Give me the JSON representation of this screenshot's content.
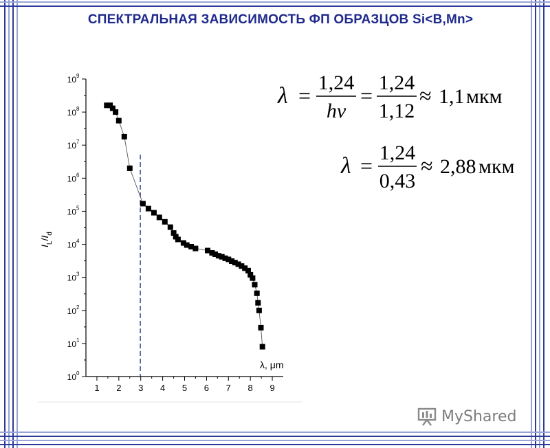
{
  "title": "СПЕКТРАЛЬНАЯ ЗАВИСИМОСТЬ ФП ОБРАЗЦОВ Si<B,Mn>",
  "formula1": {
    "lhs": "λ",
    "eq": "=",
    "frac1_num": "1,24",
    "frac1_den": "hν",
    "frac2_num": "1,24",
    "frac2_den": "1,12",
    "approx": "≈",
    "value": "1,1",
    "unit": "мкм"
  },
  "formula2": {
    "lhs": "λ",
    "eq": "=",
    "frac_num": "1,24",
    "frac_den": "0,43",
    "approx": "≈",
    "value": "2,88",
    "unit": "мкм"
  },
  "logo": {
    "text": "MyShared",
    "icon": "presentation-board-icon"
  },
  "colors": {
    "title": "#1f2a8c",
    "frame": "#2d3a9a",
    "dashed": "#1f2a8c"
  },
  "chart_data": {
    "type": "scatter",
    "xlabel": "λ, μm",
    "ylabel": "IL/Id",
    "ylabel_parts": {
      "I1": "I",
      "sub1": "L",
      "slash": "/",
      "I2": "I",
      "sub2": "d"
    },
    "xlim": [
      0.5,
      9.5
    ],
    "ylim_log10": [
      0,
      9
    ],
    "y_scale": "log",
    "x_ticks": [
      1,
      2,
      3,
      4,
      5,
      6,
      7,
      8,
      9
    ],
    "y_tick_base": "10",
    "y_tick_exponents": [
      0,
      1,
      2,
      3,
      4,
      5,
      6,
      7,
      8,
      9
    ],
    "vline_x": 2.98,
    "points": [
      [
        1.45,
        160000000
      ],
      [
        1.6,
        160000000
      ],
      [
        1.72,
        130000000
      ],
      [
        1.85,
        100000000
      ],
      [
        2.0,
        55000000
      ],
      [
        2.25,
        18000000
      ],
      [
        2.5,
        2000000
      ],
      [
        3.1,
        170000
      ],
      [
        3.35,
        120000
      ],
      [
        3.6,
        90000
      ],
      [
        3.85,
        65000
      ],
      [
        4.1,
        48000
      ],
      [
        4.35,
        33000
      ],
      [
        4.5,
        22000
      ],
      [
        4.6,
        17000
      ],
      [
        4.7,
        14000
      ],
      [
        4.95,
        11000
      ],
      [
        5.1,
        9500
      ],
      [
        5.3,
        8500
      ],
      [
        5.5,
        7500
      ],
      [
        6.05,
        6500
      ],
      [
        6.25,
        5500
      ],
      [
        6.4,
        5000
      ],
      [
        6.55,
        4500
      ],
      [
        6.7,
        4200
      ],
      [
        6.85,
        3800
      ],
      [
        7.0,
        3500
      ],
      [
        7.15,
        3100
      ],
      [
        7.3,
        2800
      ],
      [
        7.45,
        2500
      ],
      [
        7.6,
        2200
      ],
      [
        7.75,
        1900
      ],
      [
        7.9,
        1600
      ],
      [
        8.0,
        1200
      ],
      [
        8.1,
        950
      ],
      [
        8.2,
        600
      ],
      [
        8.3,
        330
      ],
      [
        8.35,
        170
      ],
      [
        8.4,
        100
      ],
      [
        8.48,
        30
      ],
      [
        8.55,
        8
      ]
    ]
  }
}
